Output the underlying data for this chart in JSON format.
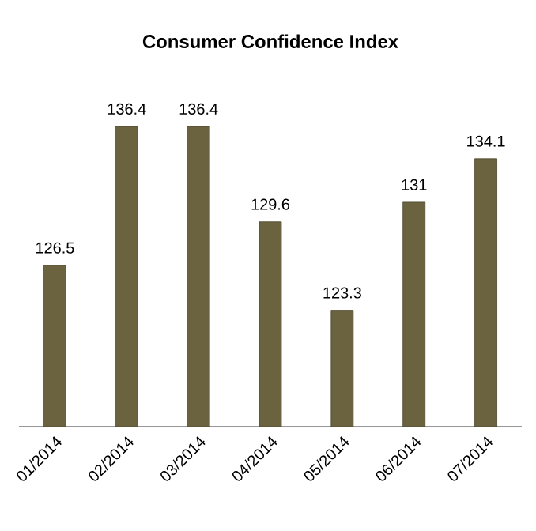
{
  "chart_data": {
    "type": "bar",
    "title": "Consumer Confidence Index",
    "categories": [
      "01/2014",
      "02/2014",
      "03/2014",
      "04/2014",
      "05/2014",
      "06/2014",
      "07/2014"
    ],
    "values": [
      126.5,
      136.4,
      136.4,
      129.6,
      123.3,
      131,
      134.1
    ],
    "value_labels": [
      "126.5",
      "136.4",
      "136.4",
      "129.6",
      "123.3",
      "131",
      "134.1"
    ],
    "color": "#6b6340",
    "ylim": [
      115,
      136.4
    ],
    "tick_labels": "x"
  }
}
